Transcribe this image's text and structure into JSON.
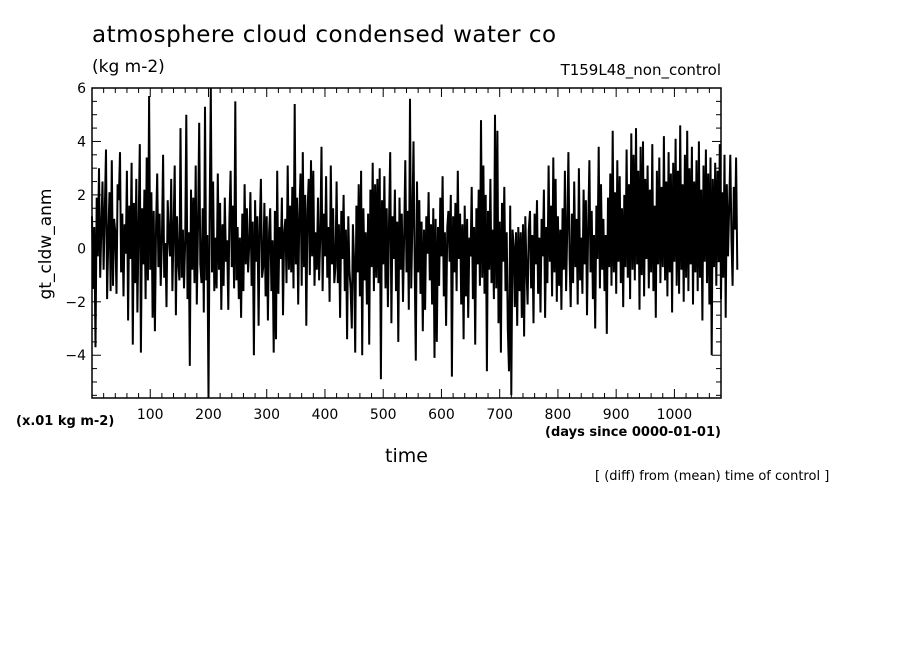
{
  "chart_data": {
    "type": "line",
    "title": "atmosphere cloud condensed water co",
    "units": "(kg m-2)",
    "run_label": "T159L48_non_control",
    "ylabel": "gt_cldw_anm",
    "yscale_label": "(x.01 kg m-2)",
    "xlabel": "time",
    "xunits": "(days since 0000-01-01)",
    "note": "[ (diff) from (mean) time of control ]",
    "xlim": [
      0,
      1080
    ],
    "ylim": [
      -5.6,
      6
    ],
    "xticks": [
      100,
      200,
      300,
      400,
      500,
      600,
      700,
      800,
      900,
      1000
    ],
    "yticks": [
      -4,
      -2,
      0,
      2,
      4,
      6
    ],
    "grid": false,
    "series": [
      {
        "color": "#000000",
        "x_start": 0,
        "x_step": 2,
        "values": [
          1.2,
          -1.5,
          0.8,
          -3.7,
          1.9,
          -0.3,
          3.0,
          -1.1,
          0.7,
          2.5,
          -0.8,
          1.4,
          3.7,
          -1.9,
          0.4,
          2.1,
          -1.6,
          3.3,
          -1.4,
          1.1,
          0.6,
          -1.7,
          2.4,
          1.8,
          3.6,
          -0.9,
          1.3,
          -1.8,
          0.9,
          -0.2,
          2.9,
          -2.7,
          1.6,
          -0.4,
          3.2,
          -3.6,
          1.7,
          -1.3,
          2.6,
          -2.4,
          0.8,
          3.9,
          -3.9,
          1.5,
          -0.6,
          2.2,
          -1.9,
          3.4,
          -1.2,
          5.7,
          -0.8,
          2.1,
          -2.6,
          1.4,
          -3.1,
          0.9,
          2.8,
          -0.7,
          1.3,
          -1.4,
          0.3,
          3.5,
          -1.1,
          0.2,
          -2.2,
          1.8,
          0.4,
          -0.3,
          2.6,
          -1.6,
          0.6,
          3.1,
          -2.5,
          1.2,
          -0.5,
          -1.2,
          4.5,
          -1.1,
          0.7,
          -1.5,
          0.3,
          5.0,
          -1.9,
          0.6,
          -4.4,
          2.2,
          -0.8,
          1.9,
          -1.3,
          3.1,
          -2.1,
          0.8,
          4.7,
          -0.6,
          -1.3,
          1.5,
          -2.4,
          5.3,
          -1.2,
          0.5,
          -5.6,
          1.1,
          6.0,
          -0.9,
          2.5,
          -1.6,
          0.4,
          -1.5,
          2.8,
          -0.8,
          1.7,
          -2.3,
          0.9,
          -1.4,
          1.9,
          -0.5,
          0.3,
          -2.3,
          1.1,
          2.9,
          -0.7,
          1.6,
          -1.5,
          5.5,
          -1.2,
          0.8,
          -1.9,
          0.4,
          -2.6,
          1.3,
          -1.6,
          2.4,
          -0.6,
          1.5,
          -0.9,
          0.2,
          2.1,
          -1.4,
          1.0,
          -4.0,
          1.8,
          -0.5,
          1.2,
          -2.9,
          0.7,
          2.6,
          -1.1,
          -0.7,
          1.7,
          -1.8,
          1.2,
          -2.7,
          0.6,
          1.5,
          -1.6,
          0.3,
          -3.9,
          1.4,
          -3.4,
          2.9,
          -1.7,
          0.8,
          -0.4,
          1.9,
          -2.5,
          0.6,
          1.1,
          -1.3,
          3.1,
          -0.8,
          1.6,
          -0.9,
          2.3,
          -1.5,
          5.4,
          -0.6,
          1.9,
          -2.1,
          1.2,
          2.8,
          -1.4,
          3.6,
          -0.7,
          2.0,
          -2.9,
          1.4,
          2.6,
          -1.0,
          3.3,
          -0.3,
          2.9,
          -1.4,
          0.6,
          -0.8,
          1.9,
          -1.2,
          0.5,
          3.8,
          -1.6,
          1.3,
          -0.3,
          2.7,
          -1.1,
          0.8,
          -2.0,
          3.1,
          -0.6,
          1.5,
          -1.3,
          -0.7,
          2.5,
          -1.3,
          0.9,
          -2.6,
          1.4,
          -0.4,
          2.0,
          -1.6,
          0.7,
          -3.4,
          1.2,
          -0.8,
          -1.5,
          -3.0,
          0.9,
          -0.5,
          -3.9,
          1.6,
          -0.9,
          2.4,
          -1.8,
          2.9,
          -4.0,
          1.5,
          -1.2,
          0.6,
          -2.1,
          1.3,
          -3.6,
          2.2,
          -0.7,
          3.2,
          -1.6,
          2.4,
          -1.1,
          2.6,
          -1.3,
          3.0,
          -4.9,
          1.8,
          -0.6,
          2.7,
          -1.5,
          1.5,
          -2.2,
          0.9,
          3.6,
          -2.8,
          1.2,
          -0.4,
          2.2,
          -1.6,
          1.0,
          -3.5,
          1.9,
          -0.8,
          1.3,
          -2.0,
          0.6,
          3.3,
          -0.9,
          1.4,
          -2.3,
          5.6,
          -1.5,
          0.8,
          4.0,
          -0.7,
          -4.2,
          2.5,
          -0.9,
          1.8,
          -1.7,
          1.0,
          -3.1,
          0.7,
          -2.3,
          1.2,
          -0.2,
          2.1,
          -1.2,
          0.9,
          -2.1,
          1.5,
          -4.1,
          1.1,
          -3.5,
          0.8,
          -1.4,
          1.9,
          -0.3,
          2.7,
          -1.8,
          0.6,
          -2.9,
          0.8,
          1.4,
          -0.5,
          2.0,
          -4.8,
          1.2,
          -0.9,
          1.7,
          -1.6,
          2.9,
          -0.4,
          1.3,
          -2.1,
          0.9,
          -3.4,
          1.6,
          -1.8,
          1.1,
          -2.6,
          0.4,
          -0.3,
          2.3,
          -1.9,
          0.8,
          -3.6,
          1.5,
          -0.6,
          2.2,
          -1.4,
          4.8,
          -1.1,
          3.1,
          -1.7,
          2.0,
          -4.6,
          1.4,
          -0.8,
          2.6,
          -1.3,
          0.7,
          -1.9,
          5.0,
          -1.5,
          4.4,
          -2.8,
          1.0,
          -3.9,
          1.7,
          -0.5,
          2.3,
          -1.6,
          0.6,
          -3.0,
          -4.6,
          1.6,
          -5.5,
          0.7,
          0.1,
          -2.2,
          0.6,
          -2.9,
          0.8,
          -1.6,
          0.6,
          -2.6,
          0.9,
          -3.3,
          1.2,
          -0.8,
          -2.1,
          0.7,
          1.4,
          -1.5,
          0.5,
          -2.8,
          1.3,
          -0.6,
          1.8,
          -1.7,
          0.4,
          -2.4,
          1.1,
          -0.3,
          2.2,
          -2.6,
          0.8,
          -1.3,
          3.1,
          -0.5,
          1.6,
          -1.8,
          3.4,
          -0.9,
          2.6,
          -2.0,
          1.2,
          -1.4,
          0.7,
          -2.3,
          1.5,
          -0.8,
          2.9,
          -1.6,
          0.6,
          3.6,
          -0.4,
          -2.2,
          1.3,
          -1.3,
          2.5,
          -0.7,
          1.1,
          -2.1,
          3.0,
          -1.2,
          0.4,
          -1.7,
          2.2,
          -0.6,
          1.8,
          -2.5,
          0.8,
          3.3,
          -0.9,
          1.4,
          -1.9,
          0.5,
          -3.0,
          1.6,
          -0.4,
          3.8,
          -1.5,
          2.4,
          -0.8,
          1.1,
          -1.6,
          0.5,
          -3.2,
          1.9,
          -0.7,
          2.8,
          -1.4,
          4.4,
          -0.9,
          2.1,
          -1.7,
          3.3,
          -0.5,
          2.7,
          -1.3,
          1.5,
          -2.2,
          2.0,
          -0.7,
          3.7,
          -1.1,
          2.4,
          -1.9,
          4.3,
          -0.8,
          3.5,
          -1.2,
          4.5,
          -0.6,
          2.9,
          -2.3,
          3.8,
          -1.0,
          4.0,
          -1.8,
          2.6,
          -0.4,
          3.1,
          -1.5,
          2.2,
          -0.9,
          3.9,
          -1.6,
          1.6,
          -2.6,
          2.9,
          -0.6,
          3.4,
          -1.3,
          2.3,
          -0.7,
          4.2,
          -1.2,
          2.5,
          -1.8,
          3.6,
          -0.9,
          2.8,
          -2.4,
          3.2,
          -0.5,
          4.1,
          -1.4,
          2.9,
          -1.7,
          4.6,
          -0.8,
          2.4,
          -2.0,
          3.5,
          -1.1,
          4.4,
          -1.6,
          3.0,
          -0.6,
          3.8,
          -2.1,
          2.5,
          -0.9,
          3.3,
          -1.6,
          4.0,
          -1.1,
          2.2,
          -2.7,
          3.1,
          -0.5,
          3.7,
          -1.3,
          2.8,
          -2.1,
          3.4,
          -4.0,
          2.6,
          -0.7,
          3.2,
          -1.4,
          2.9,
          -0.5,
          3.9,
          -1.9,
          2.1,
          -1.1,
          3.5,
          -2.6,
          2.4,
          -0.3,
          1.6,
          3.5,
          0.3,
          -1.4,
          2.3,
          0.7,
          3.4,
          -0.8
        ]
      }
    ]
  }
}
